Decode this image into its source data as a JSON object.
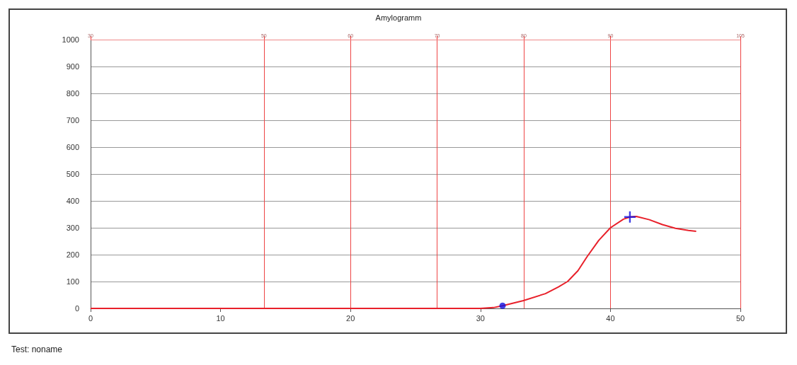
{
  "chart_data": {
    "type": "line",
    "title": "Amylogramm",
    "annotations": [
      "Test: noname"
    ],
    "xlim": [
      0,
      50
    ],
    "xticks": [
      0,
      10,
      20,
      30,
      40,
      50
    ],
    "ylim": [
      0,
      1000
    ],
    "yticks": [
      0,
      100,
      200,
      300,
      400,
      500,
      600,
      700,
      800,
      900,
      1000
    ],
    "x2lim": [
      30,
      105
    ],
    "x2ticks": [
      30,
      50,
      60,
      70,
      80,
      90,
      105
    ],
    "grid": true,
    "series": [
      {
        "color": "#e8202a",
        "marker": "none",
        "x": [
          0,
          10,
          20,
          30,
          31,
          31.7,
          33.3,
          35,
          36,
          36.7,
          37.5,
          38.2,
          39.1,
          40,
          41,
          41.5,
          42,
          43,
          44,
          45,
          46,
          46.6
        ],
        "values": [
          0,
          0,
          0,
          0,
          3,
          10,
          29,
          55,
          80,
          100,
          140,
          192,
          253,
          300,
          332,
          340,
          342,
          330,
          312,
          298,
          290,
          287
        ]
      },
      {
        "type": "scatter",
        "color": "#1010e0",
        "marker": "circle",
        "x": [
          31.7
        ],
        "values": [
          10
        ]
      },
      {
        "type": "scatter",
        "color": "#1010e0",
        "marker": "cross",
        "x": [
          41.5
        ],
        "values": [
          340
        ]
      }
    ]
  }
}
